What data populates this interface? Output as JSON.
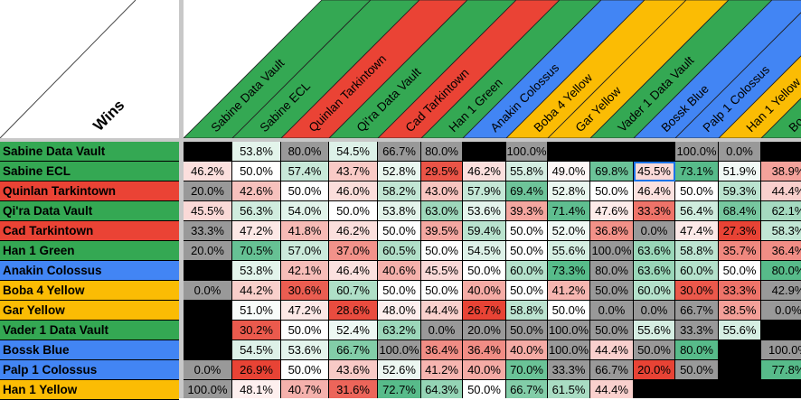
{
  "corner_label": "Wins",
  "colors": {
    "green": "#34a853",
    "red": "#ea4335",
    "blue": "#4285f4",
    "yellow": "#fbbc04",
    "gray": "#999999",
    "black": "#000000",
    "scale_low": "#e84335",
    "scale_mid": "#ffffff",
    "scale_high": "#57bb8a",
    "selection": "#1a73e8"
  },
  "columns": [
    {
      "label": "Sabine Data Vault",
      "color": "green"
    },
    {
      "label": "Sabine ECL",
      "color": "green"
    },
    {
      "label": "Quinlan Tarkintown",
      "color": "red"
    },
    {
      "label": "Qi'ra Data Vault",
      "color": "green"
    },
    {
      "label": "Cad Tarkintown",
      "color": "red"
    },
    {
      "label": "Han 1 Green",
      "color": "green"
    },
    {
      "label": "Anakin Colossus",
      "color": "blue"
    },
    {
      "label": "Boba 4 Yellow",
      "color": "yellow"
    },
    {
      "label": "Gar Yellow",
      "color": "yellow"
    },
    {
      "label": "Vader 1 Data Vault",
      "color": "green"
    },
    {
      "label": "Bossk Blue",
      "color": "blue"
    },
    {
      "label": "Palp 1 Colossus",
      "color": "blue"
    },
    {
      "label": "Han 1 Yellow",
      "color": "yellow"
    },
    {
      "label": "Bo",
      "color": "green"
    }
  ],
  "rows": [
    {
      "label": "Sabine Data Vault",
      "color": "green",
      "cells": [
        "",
        "53.8%",
        "80.0%",
        "54.5%",
        "66.7%",
        "80.0%",
        "",
        "100.0%",
        "",
        "",
        "",
        "100.0%",
        "0.0%",
        ""
      ],
      "gray": [
        2,
        4,
        5,
        7,
        11,
        12
      ]
    },
    {
      "label": "Sabine ECL",
      "color": "green",
      "cells": [
        "46.2%",
        "50.0%",
        "57.4%",
        "43.7%",
        "52.8%",
        "29.5%",
        "46.2%",
        "55.8%",
        "49.0%",
        "69.8%",
        "45.5%",
        "73.1%",
        "51.9%",
        "38.9%"
      ],
      "gray": [],
      "selected": 10
    },
    {
      "label": "Quinlan Tarkintown",
      "color": "red",
      "cells": [
        "20.0%",
        "42.6%",
        "50.0%",
        "46.0%",
        "58.2%",
        "43.0%",
        "57.9%",
        "69.4%",
        "52.8%",
        "50.0%",
        "46.4%",
        "50.0%",
        "59.3%",
        "44.4%"
      ],
      "gray": [
        0
      ]
    },
    {
      "label": "Qi'ra Data Vault",
      "color": "green",
      "cells": [
        "45.5%",
        "56.3%",
        "54.0%",
        "50.0%",
        "53.8%",
        "63.0%",
        "53.6%",
        "39.3%",
        "71.4%",
        "47.6%",
        "33.3%",
        "56.4%",
        "68.4%",
        "62.1%"
      ],
      "gray": []
    },
    {
      "label": "Cad Tarkintown",
      "color": "red",
      "cells": [
        "33.3%",
        "47.2%",
        "41.8%",
        "46.2%",
        "50.0%",
        "39.5%",
        "59.4%",
        "50.0%",
        "52.0%",
        "36.8%",
        "0.0%",
        "47.4%",
        "27.3%",
        "58.3%"
      ],
      "gray": [
        0,
        10
      ]
    },
    {
      "label": "Han 1 Green",
      "color": "green",
      "cells": [
        "20.0%",
        "70.5%",
        "57.0%",
        "37.0%",
        "60.5%",
        "50.0%",
        "54.5%",
        "50.0%",
        "55.6%",
        "100.0%",
        "63.6%",
        "58.8%",
        "35.7%",
        "36.4%"
      ],
      "gray": [
        0,
        9
      ]
    },
    {
      "label": "Anakin Colossus",
      "color": "blue",
      "cells": [
        "",
        "53.8%",
        "42.1%",
        "46.4%",
        "40.6%",
        "45.5%",
        "50.0%",
        "60.0%",
        "73.3%",
        "80.0%",
        "63.6%",
        "60.0%",
        "50.0%",
        "80.0%"
      ],
      "gray": [
        9
      ]
    },
    {
      "label": "Boba 4 Yellow",
      "color": "yellow",
      "cells": [
        "0.0%",
        "44.2%",
        "30.6%",
        "60.7%",
        "50.0%",
        "50.0%",
        "40.0%",
        "50.0%",
        "41.2%",
        "50.0%",
        "60.0%",
        "30.0%",
        "33.3%",
        "42.9%"
      ],
      "gray": [
        0,
        9,
        13
      ]
    },
    {
      "label": "Gar Yellow",
      "color": "yellow",
      "cells": [
        "",
        "51.0%",
        "47.2%",
        "28.6%",
        "48.0%",
        "44.4%",
        "26.7%",
        "58.8%",
        "50.0%",
        "0.0%",
        "0.0%",
        "66.7%",
        "38.5%",
        "0.0%"
      ],
      "gray": [
        9,
        10,
        11,
        13
      ]
    },
    {
      "label": "Vader 1 Data Vault",
      "color": "green",
      "cells": [
        "",
        "30.2%",
        "50.0%",
        "52.4%",
        "63.2%",
        "0.0%",
        "20.0%",
        "50.0%",
        "100.0%",
        "50.0%",
        "55.6%",
        "33.3%",
        "55.6%",
        ""
      ],
      "gray": [
        5,
        6,
        7,
        8,
        9,
        11
      ]
    },
    {
      "label": "Bossk Blue",
      "color": "blue",
      "cells": [
        "",
        "54.5%",
        "53.6%",
        "66.7%",
        "100.0%",
        "36.4%",
        "36.4%",
        "40.0%",
        "100.0%",
        "44.4%",
        "50.0%",
        "80.0%",
        "",
        "100.0%"
      ],
      "gray": [
        4,
        8,
        10,
        13
      ]
    },
    {
      "label": "Palp 1 Colossus",
      "color": "blue",
      "cells": [
        "0.0%",
        "26.9%",
        "50.0%",
        "43.6%",
        "52.6%",
        "41.2%",
        "40.0%",
        "70.0%",
        "33.3%",
        "66.7%",
        "20.0%",
        "50.0%",
        "",
        "77.8%"
      ],
      "gray": [
        0,
        8,
        9,
        11
      ]
    },
    {
      "label": "Han 1 Yellow",
      "color": "yellow",
      "cells": [
        "100.0%",
        "48.1%",
        "40.7%",
        "31.6%",
        "72.7%",
        "64.3%",
        "50.0%",
        "66.7%",
        "61.5%",
        "44.4%",
        "",
        "",
        "",
        ""
      ],
      "gray": [
        0
      ]
    }
  ]
}
